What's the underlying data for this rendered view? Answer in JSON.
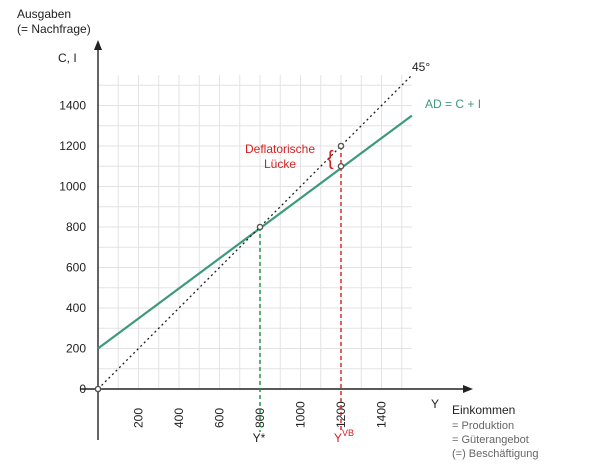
{
  "chart_data": {
    "type": "line",
    "title": "",
    "ylabel_top": "Ausgaben",
    "ylabel_sub": "(= Nachfrage)",
    "ylabel_axis": "C, I",
    "xlabel_axis": "Y",
    "xlabel": "Einkommen",
    "xlabel_notes": [
      "= Produktion",
      "= Güterangebot",
      "(=) Beschäftigung"
    ],
    "xlim": [
      0,
      1550
    ],
    "ylim": [
      0,
      1550
    ],
    "x_ticks": [
      200,
      400,
      600,
      800,
      1000,
      1200,
      1400
    ],
    "y_ticks": [
      0,
      200,
      400,
      600,
      800,
      1000,
      1200,
      1400
    ],
    "grid": true,
    "series": [
      {
        "name": "AD = C + I",
        "color": "#3d9a7a",
        "style": "solid",
        "x": [
          0,
          1550
        ],
        "y": [
          200,
          1350
        ]
      },
      {
        "name": "45°",
        "color": "#222222",
        "style": "dotted",
        "x": [
          0,
          1550
        ],
        "y": [
          0,
          1550
        ]
      }
    ],
    "points": [
      {
        "name": "origin",
        "x": 0,
        "y": 0
      },
      {
        "name": "equilibrium",
        "x": 800,
        "y": 800
      },
      {
        "name": "full-employment-45",
        "x": 1200,
        "y": 1200
      },
      {
        "name": "full-employment-ad",
        "x": 1200,
        "y": 1100
      }
    ],
    "guides": [
      {
        "name": "Y*",
        "x": 800,
        "y": 800,
        "color": "#1e8a3e"
      },
      {
        "name": "Y^VB",
        "x": 1200,
        "y": 1200,
        "color": "#d42020"
      }
    ],
    "annotations": {
      "ystar_label": "Y*",
      "yvb_base": "Y",
      "yvb_sup": "VB",
      "gap_line1": "Deflatorische",
      "gap_line2": "Lücke",
      "gap_brace": "{",
      "gap_color": "#d42020"
    }
  }
}
